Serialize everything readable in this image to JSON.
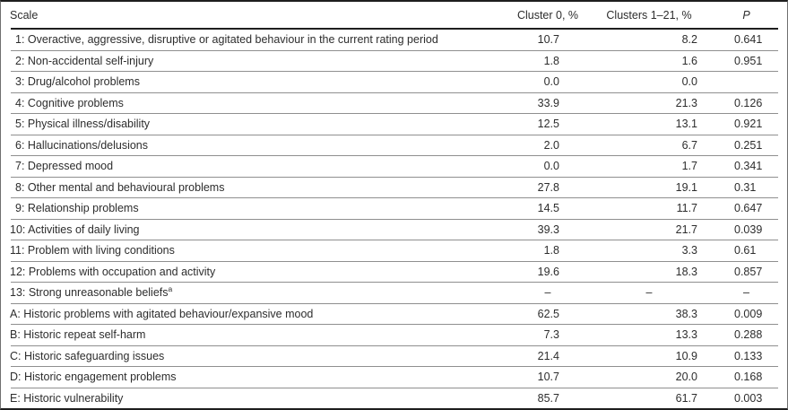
{
  "table": {
    "columns": [
      {
        "label": "Scale"
      },
      {
        "label": "Cluster 0, %"
      },
      {
        "label": "Clusters 1–21, %"
      },
      {
        "label": "P"
      }
    ],
    "rows": [
      {
        "scale": "1: Overactive, aggressive, disruptive or agitated behaviour in the current rating period",
        "indent": true,
        "cluster0_pct": "10.7",
        "clusters1_21_pct": "8.2",
        "p": "0.641"
      },
      {
        "scale": "2: Non-accidental self-injury",
        "indent": true,
        "cluster0_pct": "1.8",
        "clusters1_21_pct": "1.6",
        "p": "0.951"
      },
      {
        "scale": "3: Drug/alcohol problems",
        "indent": true,
        "cluster0_pct": "0.0",
        "clusters1_21_pct": "0.0",
        "p": ""
      },
      {
        "scale": "4: Cognitive problems",
        "indent": true,
        "cluster0_pct": "33.9",
        "clusters1_21_pct": "21.3",
        "p": "0.126"
      },
      {
        "scale": "5: Physical illness/disability",
        "indent": true,
        "cluster0_pct": "12.5",
        "clusters1_21_pct": "13.1",
        "p": "0.921"
      },
      {
        "scale": "6: Hallucinations/delusions",
        "indent": true,
        "cluster0_pct": "2.0",
        "clusters1_21_pct": "6.7",
        "p": "0.251"
      },
      {
        "scale": "7: Depressed mood",
        "indent": true,
        "cluster0_pct": "0.0",
        "clusters1_21_pct": "1.7",
        "p": "0.341"
      },
      {
        "scale": "8: Other mental and behavioural problems",
        "indent": true,
        "cluster0_pct": "27.8",
        "clusters1_21_pct": "19.1",
        "p": "0.31"
      },
      {
        "scale": "9: Relationship problems",
        "indent": true,
        "cluster0_pct": "14.5",
        "clusters1_21_pct": "11.7",
        "p": "0.647"
      },
      {
        "scale": "10: Activities of daily living",
        "indent": false,
        "cluster0_pct": "39.3",
        "clusters1_21_pct": "21.7",
        "p": "0.039"
      },
      {
        "scale": "11: Problem with living conditions",
        "indent": false,
        "cluster0_pct": "1.8",
        "clusters1_21_pct": "3.3",
        "p": "0.61"
      },
      {
        "scale": "12: Problems with occupation and activity",
        "indent": false,
        "cluster0_pct": "19.6",
        "clusters1_21_pct": "18.3",
        "p": "0.857"
      },
      {
        "scale": "13: Strong unreasonable beliefs",
        "sup": "a",
        "indent": false,
        "cluster0_pct": "–",
        "clusters1_21_pct": "–",
        "p": "–"
      },
      {
        "scale": "A: Historic problems with agitated behaviour/expansive mood",
        "indent": false,
        "cluster0_pct": "62.5",
        "clusters1_21_pct": "38.3",
        "p": "0.009"
      },
      {
        "scale": "B: Historic repeat self-harm",
        "indent": false,
        "cluster0_pct": "7.3",
        "clusters1_21_pct": "13.3",
        "p": "0.288"
      },
      {
        "scale": "C: Historic safeguarding issues",
        "indent": false,
        "cluster0_pct": "21.4",
        "clusters1_21_pct": "10.9",
        "p": "0.133"
      },
      {
        "scale": "D: Historic engagement problems",
        "indent": false,
        "cluster0_pct": "10.7",
        "clusters1_21_pct": "20.0",
        "p": "0.168"
      },
      {
        "scale": "E: Historic vulnerability",
        "indent": false,
        "cluster0_pct": "85.7",
        "clusters1_21_pct": "61.7",
        "p": "0.003"
      }
    ]
  },
  "colors": {
    "text": "#2d2d2d",
    "rule_heavy": "#1e1e1e",
    "rule_light": "#8f8f8f",
    "side_border": "#6f6f6f",
    "background": "#ffffff"
  }
}
